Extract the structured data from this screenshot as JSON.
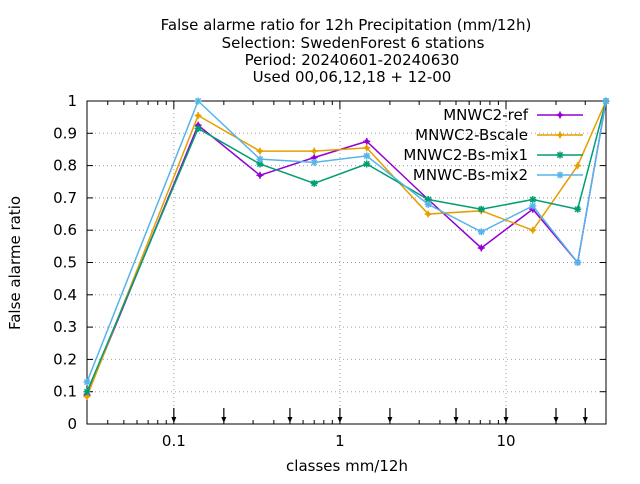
{
  "chart_data": {
    "type": "line",
    "title_lines": [
      "False alarme ratio  for 12h Precipitation (mm/12h)",
      "Selection: SwedenForest      6 stations",
      "Period: 20240601-20240630",
      "Used 00,06,12,18 + 12-00"
    ],
    "xlabel": "classes mm/12h",
    "ylabel": "False alarme ratio",
    "xscale": "log",
    "xlim": [
      0.03,
      40
    ],
    "ylim": [
      0,
      1
    ],
    "x_ticks": [
      {
        "value": 0.1,
        "label": "0.1"
      },
      {
        "value": 1,
        "label": "1"
      },
      {
        "value": 10,
        "label": "10"
      }
    ],
    "y_ticks": [
      {
        "value": 0,
        "label": "0"
      },
      {
        "value": 0.1,
        "label": "0.1"
      },
      {
        "value": 0.2,
        "label": "0.2"
      },
      {
        "value": 0.3,
        "label": "0.3"
      },
      {
        "value": 0.4,
        "label": "0.4"
      },
      {
        "value": 0.5,
        "label": "0.5"
      },
      {
        "value": 0.6,
        "label": "0.6"
      },
      {
        "value": 0.7,
        "label": "0.7"
      },
      {
        "value": 0.8,
        "label": "0.8"
      },
      {
        "value": 0.9,
        "label": "0.9"
      },
      {
        "value": 1,
        "label": "1"
      }
    ],
    "class_markers": [
      0.1,
      0.2,
      0.5,
      1,
      2,
      5,
      10,
      20,
      30
    ],
    "grid": true,
    "legend_position": "top-right",
    "x": [
      0.03,
      0.14,
      0.33,
      0.7,
      1.45,
      3.4,
      7.1,
      14.5,
      27,
      40
    ],
    "series": [
      {
        "name": "MNWC2-ref",
        "color": "#9400d3",
        "marker": "plus",
        "values": [
          0.09,
          0.925,
          0.77,
          0.825,
          0.875,
          0.695,
          0.545,
          0.665,
          0.5,
          1.0
        ]
      },
      {
        "name": "MNWC2-Bscale",
        "color": "#e69f00",
        "marker": "plus",
        "values": [
          0.085,
          0.955,
          0.845,
          0.845,
          0.855,
          0.65,
          0.66,
          0.6,
          0.8,
          1.0
        ]
      },
      {
        "name": "MNWC2-Bs-mix1",
        "color": "#009e73",
        "marker": "star",
        "values": [
          0.1,
          0.915,
          0.805,
          0.745,
          0.805,
          0.695,
          0.665,
          0.695,
          0.665,
          1.0
        ]
      },
      {
        "name": "MNWC-Bs-mix2",
        "color": "#56b4e9",
        "marker": "star",
        "values": [
          0.13,
          1.0,
          0.82,
          0.81,
          0.83,
          0.68,
          0.595,
          0.675,
          0.5,
          1.0
        ]
      }
    ]
  }
}
